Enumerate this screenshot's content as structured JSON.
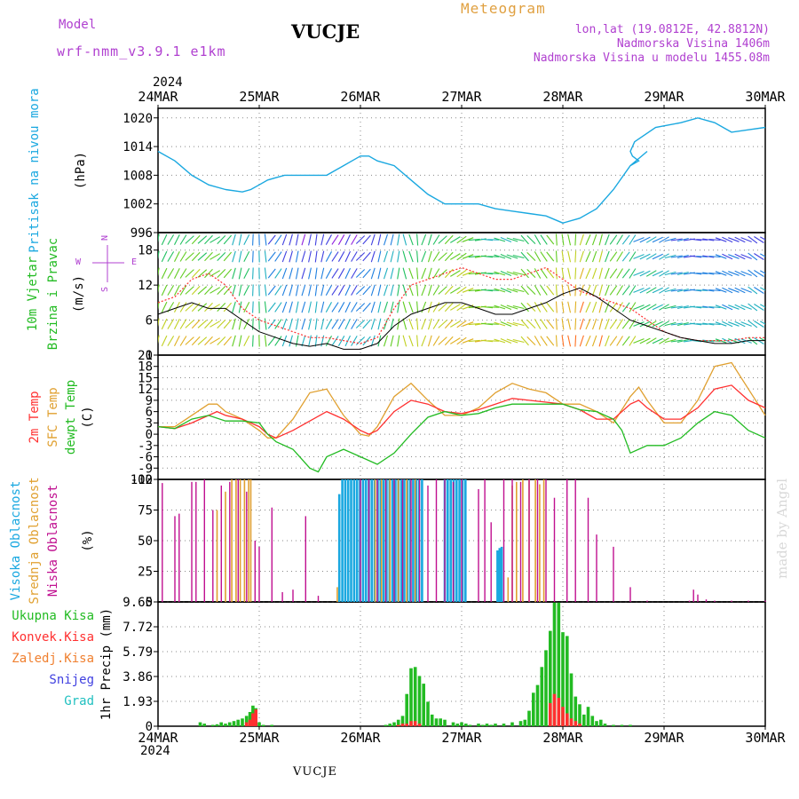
{
  "header": {
    "model_label": "Model",
    "model_name": "wrf-nmm_v3.9.1 e1km",
    "station": "VUCJE",
    "app_title": "Meteogram",
    "coords": "lon,lat (19.0812E, 42.8812N)",
    "elevation": "Nadmorska Visina 1406m",
    "model_elevation": "Nadmorska Visina u modelu 1455.08m",
    "year": "2024",
    "footer_station": "VUCJE",
    "watermark": "made by Angel"
  },
  "colors": {
    "pressure": "#1aa8e0",
    "temp2m": "#ff3030",
    "sfc_temp": "#e0a030",
    "dewpoint": "#22bb22",
    "high_cloud": "#1aa8e0",
    "mid_cloud": "#e0a030",
    "low_cloud": "#c01090",
    "total_precip": "#22bb22",
    "conv_precip": "#ff3030",
    "frz_precip": "#f08030",
    "snow": "#4040e0",
    "hail": "#20c0c0",
    "wind_speed": "#000000",
    "wind_gust": "#ff3030"
  },
  "chart_data": [
    {
      "type": "line",
      "id": "pressure",
      "ylabel": [
        "Pritisak na nivou mora",
        "(hPa)"
      ],
      "x_ticks": [
        "24MAR",
        "25MAR",
        "26MAR",
        "27MAR",
        "28MAR",
        "29MAR",
        "30MAR"
      ],
      "x_range": [
        0,
        144
      ],
      "ylim": [
        996,
        1022
      ],
      "y_ticks": [
        996,
        1002,
        1008,
        1014,
        1020
      ],
      "grid": true,
      "series": [
        {
          "x": [
            0,
            4,
            8,
            12,
            16,
            20,
            22,
            24,
            26,
            28,
            30,
            36,
            40,
            44,
            46,
            48,
            50,
            52,
            56,
            60,
            64,
            68,
            72,
            76,
            80,
            84,
            88,
            92,
            96,
            100,
            104,
            108,
            112,
            116,
            112,
            114,
            112.5,
            112,
            112.5,
            113,
            118,
            124,
            128,
            132,
            136,
            140,
            144
          ],
          "y": [
            1013,
            1011,
            1008,
            1006,
            1005,
            1004.5,
            1005,
            1006,
            1007,
            1007.5,
            1008,
            1008,
            1008,
            1010,
            1011,
            1012,
            1012,
            1011,
            1010,
            1007,
            1004,
            1002,
            1002,
            1002,
            1001,
            1000.5,
            1000,
            999.5,
            998,
            999,
            1001,
            1005,
            1010,
            1013,
            1010,
            1011,
            1012,
            1013,
            1014,
            1015,
            1018,
            1019,
            1020,
            1019,
            1017,
            1017.5,
            1018
          ]
        }
      ]
    },
    {
      "type": "line",
      "id": "wind",
      "ylabel": [
        "10m Vjetar",
        "Brzina i Pravac",
        "(m/s)"
      ],
      "compass": [
        "N",
        "W",
        "E",
        "S"
      ],
      "x_range": [
        0,
        144
      ],
      "ylim": [
        0,
        21
      ],
      "y_ticks": [
        0,
        6,
        12,
        18
      ],
      "grid": true,
      "series": [
        {
          "name": "speed",
          "x": [
            0,
            4,
            8,
            12,
            16,
            20,
            24,
            28,
            32,
            36,
            40,
            44,
            48,
            52,
            56,
            60,
            64,
            68,
            72,
            76,
            80,
            84,
            88,
            92,
            96,
            100,
            104,
            108,
            112,
            116,
            120,
            124,
            128,
            132,
            136,
            140,
            144
          ],
          "y": [
            7,
            8,
            9,
            8,
            8,
            6,
            4,
            3,
            2,
            1.5,
            2,
            1,
            1,
            2,
            5,
            7,
            8,
            9,
            9,
            8,
            7,
            7,
            8,
            9,
            10.5,
            11.5,
            10,
            8,
            6,
            5,
            4,
            3,
            2.5,
            2,
            2,
            2.5,
            2.5
          ]
        },
        {
          "name": "gust",
          "x": [
            0,
            4,
            8,
            12,
            16,
            20,
            24,
            28,
            32,
            36,
            40,
            44,
            48,
            52,
            56,
            60,
            64,
            68,
            72,
            76,
            80,
            84,
            88,
            92,
            96,
            100,
            104,
            108,
            112,
            116,
            120,
            124,
            128,
            132,
            136,
            140,
            144
          ],
          "y": [
            9,
            10,
            13,
            14,
            12,
            8,
            6,
            5,
            4,
            3,
            3,
            2.5,
            2,
            3,
            8,
            12,
            13,
            14,
            15,
            14,
            13,
            13,
            14,
            15,
            13,
            11,
            10,
            9,
            8,
            6,
            4,
            3,
            2.5,
            2.5,
            2.5,
            3,
            3
          ]
        }
      ],
      "barb_directions": [
        200,
        210,
        220,
        230,
        220,
        200,
        180,
        30,
        20,
        10,
        20,
        30,
        40,
        20,
        10,
        350,
        20,
        40,
        60,
        80,
        100,
        110,
        130,
        150,
        170,
        190,
        200,
        210,
        220,
        60,
        70,
        80,
        90,
        100,
        110,
        120,
        120
      ]
    },
    {
      "type": "line",
      "id": "temperature",
      "ylabel": [
        "2m Temp",
        "SFC Temp",
        "dewpt Temp",
        "(C)"
      ],
      "x_range": [
        0,
        144
      ],
      "ylim": [
        -12,
        21
      ],
      "y_ticks": [
        -12,
        -9,
        -6,
        -3,
        0,
        3,
        6,
        9,
        12,
        15,
        18,
        21
      ],
      "grid": true,
      "series": [
        {
          "name": "2m Temp",
          "x": [
            0,
            4,
            8,
            12,
            14,
            16,
            20,
            24,
            26,
            28,
            32,
            36,
            40,
            44,
            48,
            50,
            52,
            56,
            60,
            64,
            68,
            72,
            76,
            80,
            84,
            88,
            92,
            96,
            100,
            104,
            108,
            112,
            114,
            116,
            120,
            124,
            128,
            132,
            136,
            140,
            144
          ],
          "y": [
            2,
            1.5,
            3,
            5,
            6,
            5,
            4,
            2,
            0,
            -1,
            1,
            3.5,
            6,
            4,
            1,
            0,
            1,
            6,
            9,
            8,
            6,
            5.5,
            6.5,
            8,
            9.5,
            9,
            8.5,
            8,
            6.5,
            4,
            4,
            8,
            9,
            7,
            4,
            4,
            7,
            12,
            13,
            9,
            7
          ]
        },
        {
          "name": "SFC Temp",
          "x": [
            0,
            4,
            8,
            12,
            14,
            16,
            20,
            24,
            26,
            28,
            32,
            36,
            40,
            44,
            48,
            50,
            52,
            56,
            60,
            64,
            68,
            72,
            76,
            80,
            84,
            88,
            92,
            96,
            100,
            104,
            108,
            112,
            114,
            116,
            120,
            124,
            128,
            132,
            136,
            140,
            144
          ],
          "y": [
            2,
            2,
            5,
            8,
            8,
            6,
            4,
            1,
            -1,
            -1,
            4,
            11,
            12,
            5,
            0,
            -0.5,
            2,
            10,
            13.5,
            9,
            5,
            5,
            7,
            11,
            13.5,
            12,
            11,
            8,
            8,
            6,
            3,
            10,
            12.5,
            9,
            3,
            3,
            9,
            18,
            19,
            12,
            5
          ]
        },
        {
          "name": "dewpt Temp",
          "x": [
            0,
            4,
            8,
            12,
            16,
            20,
            24,
            26,
            28,
            32,
            36,
            38,
            40,
            44,
            48,
            52,
            56,
            60,
            64,
            68,
            72,
            76,
            80,
            84,
            88,
            92,
            96,
            100,
            104,
            108,
            110,
            112,
            116,
            120,
            124,
            128,
            132,
            136,
            140,
            144
          ],
          "y": [
            2,
            1.5,
            4,
            5,
            3.5,
            3.5,
            3,
            0,
            -2,
            -4,
            -9,
            -10,
            -6,
            -4,
            -6,
            -8,
            -5,
            0,
            4.5,
            6,
            5,
            5.5,
            7,
            8,
            8,
            8,
            8,
            6.5,
            6,
            4,
            1,
            -5,
            -3,
            -3,
            -1,
            3,
            6,
            5,
            1,
            -1
          ]
        }
      ]
    },
    {
      "type": "bar",
      "id": "clouds",
      "ylabel": [
        "Visoka Oblacnost",
        "Srednja Oblacnost",
        "Niska Oblacnost",
        "(%)"
      ],
      "x_range": [
        0,
        144
      ],
      "ylim": [
        0,
        100
      ],
      "y_ticks": [
        0,
        25,
        50,
        75,
        100
      ],
      "grid": true,
      "series": [
        {
          "name": "Visoka Oblacnost",
          "x": [
            43,
            43.7,
            44.4,
            45.1,
            45.8,
            46.5,
            47.2,
            47.9,
            48.6,
            49.3,
            50,
            50.7,
            51.4,
            52.1,
            52.8,
            53.5,
            54.2,
            54.9,
            55.6,
            56.3,
            57,
            57.7,
            58.4,
            59.1,
            59.8,
            60.5,
            61.2,
            61.9,
            62.6,
            68,
            68.7,
            69.4,
            70.1,
            70.8,
            71.5,
            72.2,
            72.9,
            80.5,
            81,
            81.5
          ],
          "y": [
            88,
            100,
            100,
            100,
            100,
            100,
            100,
            100,
            100,
            100,
            100,
            100,
            100,
            100,
            100,
            100,
            100,
            100,
            100,
            100,
            100,
            100,
            100,
            100,
            100,
            100,
            100,
            100,
            100,
            100,
            100,
            100,
            100,
            100,
            100,
            100,
            100,
            42,
            44,
            45
          ]
        },
        {
          "name": "Srednja Oblacnost",
          "x": [
            14,
            16,
            17.5,
            18.5,
            19.5,
            20.5,
            21.5,
            22,
            42.5,
            51.5,
            53,
            55,
            57,
            59,
            61,
            83,
            84,
            85,
            86.5,
            88,
            89.5,
            90.5,
            91.5
          ],
          "y": [
            75,
            90,
            100,
            100,
            100,
            100,
            100,
            100,
            12,
            100,
            100,
            100,
            100,
            100,
            100,
            20,
            95,
            98,
            100,
            100,
            100,
            96,
            100
          ]
        },
        {
          "name": "Niska Oblacnost",
          "x": [
            1,
            4,
            5,
            8,
            9,
            11,
            13,
            15,
            17,
            19,
            21,
            23,
            24,
            27,
            29.5,
            32,
            35,
            38,
            48,
            50,
            52,
            54,
            56,
            58,
            60,
            62,
            64,
            66,
            68,
            70,
            72,
            76,
            77.5,
            79,
            82,
            84,
            86,
            88,
            90,
            92,
            94,
            97,
            99,
            102,
            104,
            108,
            112,
            116,
            126,
            127,
            128,
            130,
            132,
            136,
            140,
            144
          ],
          "y": [
            97,
            70,
            72,
            98,
            98,
            100,
            75,
            95,
            98,
            100,
            90,
            50,
            45,
            77,
            8,
            10,
            70,
            5,
            100,
            100,
            100,
            100,
            100,
            100,
            100,
            100,
            95,
            100,
            100,
            98,
            100,
            92,
            100,
            65,
            100,
            100,
            98,
            100,
            100,
            100,
            85,
            100,
            100,
            85,
            55,
            45,
            12,
            1,
            1,
            10,
            6,
            2,
            1,
            1,
            1,
            1
          ]
        }
      ]
    },
    {
      "type": "bar",
      "id": "precip",
      "ylabel": [
        "1hr Precip (mm)"
      ],
      "legend": [
        "Ukupna Kisa",
        "Konvek.Kisa",
        "Zaledj.Kisa",
        "Snijeg",
        "Grad"
      ],
      "x_range": [
        0,
        144
      ],
      "ylim": [
        0,
        9.65
      ],
      "y_ticks": [
        0,
        1.93,
        3.86,
        5.79,
        7.72,
        9.65
      ],
      "y_tick_labels": [
        "0",
        "1.93",
        "3.86",
        "5.79",
        "7.72",
        "9.65"
      ],
      "grid": true,
      "series": [
        {
          "name": "Ukupna Kisa",
          "x": [
            10,
            11,
            13,
            14,
            15,
            16,
            17,
            18,
            19,
            20,
            21,
            21.8,
            22.5,
            23.2,
            24,
            25,
            27,
            54,
            55,
            56,
            57,
            58,
            59,
            60,
            61,
            62,
            63,
            64,
            65,
            66,
            67,
            68,
            70,
            71,
            72,
            73,
            74,
            76,
            77,
            78,
            79,
            80,
            82,
            84,
            86,
            87,
            88,
            89,
            90,
            91,
            92,
            93,
            94,
            95,
            96,
            97,
            98,
            99,
            100,
            101,
            102,
            103,
            104,
            105,
            106,
            108,
            110,
            112
          ],
          "y": [
            0.3,
            0.2,
            0.1,
            0.15,
            0.3,
            0.2,
            0.3,
            0.4,
            0.5,
            0.6,
            0.8,
            1.1,
            1.6,
            1.4,
            0.3,
            0.1,
            0.1,
            0.1,
            0.2,
            0.3,
            0.5,
            0.8,
            2.5,
            4.5,
            4.6,
            3.9,
            3.3,
            1.9,
            0.9,
            0.6,
            0.6,
            0.5,
            0.3,
            0.2,
            0.3,
            0.2,
            0.1,
            0.2,
            0.1,
            0.2,
            0.1,
            0.2,
            0.2,
            0.3,
            0.4,
            0.5,
            1.2,
            2.6,
            3.2,
            4.6,
            5.9,
            7.4,
            9.6,
            9.6,
            7.3,
            7.0,
            4.1,
            2.3,
            1.7,
            0.9,
            1.5,
            0.8,
            0.4,
            0.5,
            0.2,
            0.1,
            0.1,
            0.1
          ]
        },
        {
          "name": "Konvek.Kisa",
          "x": [
            21,
            21.8,
            22.5,
            23.2,
            57,
            58,
            59,
            60,
            61,
            62,
            93,
            94,
            95,
            96,
            97,
            98,
            99,
            100
          ],
          "y": [
            0.3,
            0.5,
            1.0,
            1.3,
            0.1,
            0.2,
            0.2,
            0.4,
            0.4,
            0.2,
            1.8,
            2.5,
            2.2,
            1.5,
            1.0,
            0.6,
            0.4,
            0.2
          ]
        },
        {
          "name": "Zaledj.Kisa",
          "x": [],
          "y": []
        },
        {
          "name": "Snijeg",
          "x": [],
          "y": []
        },
        {
          "name": "Grad",
          "x": [],
          "y": []
        }
      ]
    }
  ]
}
